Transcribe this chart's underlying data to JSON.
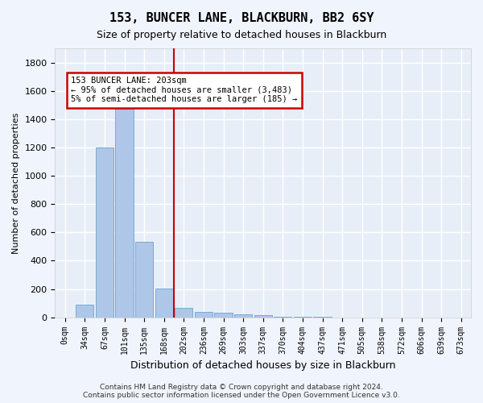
{
  "title": "153, BUNCER LANE, BLACKBURN, BB2 6SY",
  "subtitle": "Size of property relative to detached houses in Blackburn",
  "xlabel": "Distribution of detached houses by size in Blackburn",
  "ylabel": "Number of detached properties",
  "bar_color": "#aec6e8",
  "bar_edge_color": "#7aaad0",
  "background_color": "#e8eef8",
  "grid_color": "#ffffff",
  "vline_color": "#cc0000",
  "annotation_text": "153 BUNCER LANE: 203sqm\n← 95% of detached houses are smaller (3,483)\n5% of semi-detached houses are larger (185) →",
  "annotation_box_color": "#ffffff",
  "annotation_box_edge": "#cc0000",
  "footer_text": "Contains HM Land Registry data © Crown copyright and database right 2024.\nContains public sector information licensed under the Open Government Licence v3.0.",
  "bins": [
    "0sqm",
    "34sqm",
    "67sqm",
    "101sqm",
    "135sqm",
    "168sqm",
    "202sqm",
    "236sqm",
    "269sqm",
    "303sqm",
    "337sqm",
    "370sqm",
    "404sqm",
    "437sqm",
    "471sqm",
    "505sqm",
    "538sqm",
    "572sqm",
    "606sqm",
    "639sqm",
    "673sqm"
  ],
  "values": [
    0,
    90,
    1200,
    1475,
    535,
    205,
    65,
    40,
    30,
    22,
    15,
    5,
    5,
    2,
    0,
    0,
    0,
    0,
    0,
    0,
    0
  ],
  "ylim": [
    0,
    1900
  ],
  "yticks": [
    0,
    200,
    400,
    600,
    800,
    1000,
    1200,
    1400,
    1600,
    1800
  ],
  "vline_pos": 6.5
}
